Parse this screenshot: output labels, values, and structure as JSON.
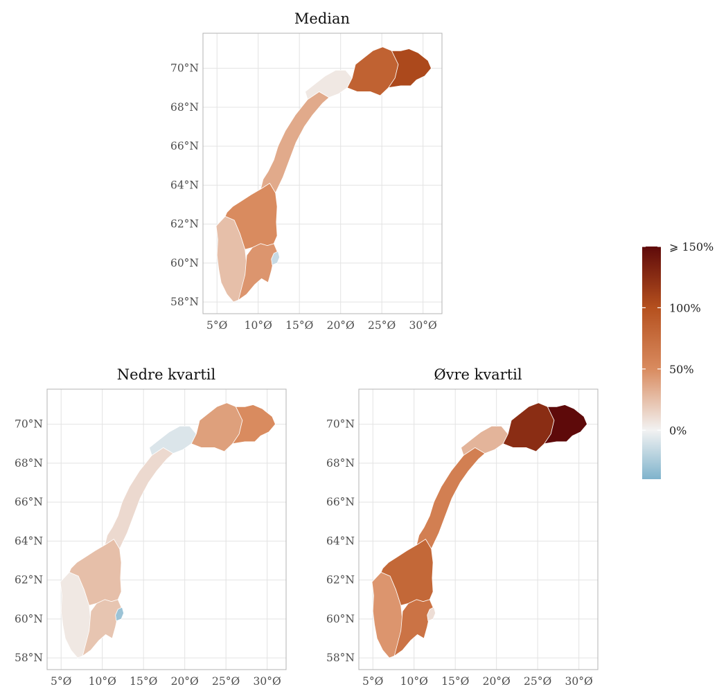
{
  "figure": {
    "panels": [
      {
        "id": "median",
        "title": "Median",
        "x_ticks": [
          "5°Ø",
          "10°Ø",
          "15°Ø",
          "20°Ø",
          "25°Ø",
          "30°Ø"
        ],
        "y_ticks": [
          "58°N",
          "60°N",
          "62°N",
          "64°N",
          "66°N",
          "68°N",
          "70°N"
        ],
        "regions": {
          "south_west": 0.25,
          "south_east": 0.45,
          "central": 0.5,
          "oslo_border": -0.15,
          "north_coast": 0.35,
          "troms": 0.05,
          "finnmark": 0.85,
          "east_finnmark": 1.05
        }
      },
      {
        "id": "nedre",
        "title": "Nedre kvartil",
        "x_ticks": [
          "5°Ø",
          "10°Ø",
          "15°Ø",
          "20°Ø",
          "25°Ø",
          "30°Ø"
        ],
        "y_ticks": [
          "58°N",
          "60°N",
          "62°N",
          "64°N",
          "66°N",
          "68°N",
          "70°N"
        ],
        "regions": {
          "south_west": 0.05,
          "south_east": 0.22,
          "central": 0.25,
          "oslo_border": -0.3,
          "north_coast": 0.12,
          "troms": -0.08,
          "finnmark": 0.4,
          "east_finnmark": 0.5
        }
      },
      {
        "id": "ovre",
        "title": "Øvre kvartil",
        "x_ticks": [
          "5°Ø",
          "10°Ø",
          "15°Ø",
          "20°Ø",
          "25°Ø",
          "30°Ø"
        ],
        "y_ticks": [
          "58°N",
          "60°N",
          "62°N",
          "64°N",
          "66°N",
          "68°N",
          "70°N"
        ],
        "regions": {
          "south_west": 0.45,
          "south_east": 0.7,
          "central": 0.8,
          "oslo_border": 0.1,
          "north_coast": 0.6,
          "troms": 0.3,
          "finnmark": 1.25,
          "east_finnmark": 1.5
        }
      }
    ],
    "legend": {
      "labels": [
        "⩾ 150%",
        "100%",
        "50%",
        "0%"
      ],
      "values": [
        1.5,
        1.0,
        0.5,
        0.0
      ],
      "min_value": -0.4,
      "max_value": 1.5,
      "colors": {
        "negative": "#7fb3cc",
        "zero": "#f2f2f2",
        "mid": "#d98b5f",
        "high": "#b5501e",
        "max": "#5e0a0a"
      }
    }
  }
}
